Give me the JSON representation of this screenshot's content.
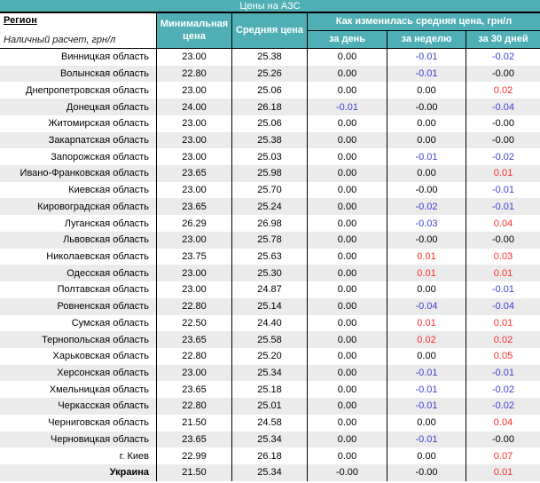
{
  "title": "Цены на АЗС",
  "header": {
    "region_label": "Регион",
    "region_sublabel": "Наличный расчет, грн/л",
    "col_min": "Минимальная цена",
    "col_avg": "Средняя цена",
    "col_change_group": "Как изменилась средняя цена, грн/л",
    "col_day": "за день",
    "col_week": "за неделю",
    "col_month": "за 30 дней"
  },
  "colors": {
    "accent_teal": "#4FAFB4",
    "negative_blue": "#3F3FD1",
    "positive_red": "#FF2D2D",
    "row_alt_gray": "#EBEBEB"
  },
  "rows": [
    {
      "region": "Винницкая область",
      "min": "23.00",
      "avg": "25.38",
      "day": {
        "v": "0.00",
        "c": "zero"
      },
      "week": {
        "v": "-0.01",
        "c": "neg"
      },
      "month": {
        "v": "-0.02",
        "c": "neg"
      },
      "bold": false
    },
    {
      "region": "Волынская область",
      "min": "22.80",
      "avg": "25.26",
      "day": {
        "v": "0.00",
        "c": "zero"
      },
      "week": {
        "v": "-0.01",
        "c": "neg"
      },
      "month": {
        "v": "-0.00",
        "c": "zero"
      },
      "bold": false
    },
    {
      "region": "Днепропетровская область",
      "min": "23.00",
      "avg": "25.06",
      "day": {
        "v": "0.00",
        "c": "zero"
      },
      "week": {
        "v": "0.00",
        "c": "zero"
      },
      "month": {
        "v": "0.02",
        "c": "pos"
      },
      "bold": false
    },
    {
      "region": "Донецкая область",
      "min": "24.00",
      "avg": "26.18",
      "day": {
        "v": "-0.01",
        "c": "neg"
      },
      "week": {
        "v": "-0.00",
        "c": "zero"
      },
      "month": {
        "v": "-0.04",
        "c": "neg"
      },
      "bold": false
    },
    {
      "region": "Житомирская область",
      "min": "23.00",
      "avg": "25.06",
      "day": {
        "v": "0.00",
        "c": "zero"
      },
      "week": {
        "v": "0.00",
        "c": "zero"
      },
      "month": {
        "v": "-0.00",
        "c": "zero"
      },
      "bold": false
    },
    {
      "region": "Закарпатская область",
      "min": "23.00",
      "avg": "25.38",
      "day": {
        "v": "0.00",
        "c": "zero"
      },
      "week": {
        "v": "0.00",
        "c": "zero"
      },
      "month": {
        "v": "-0.00",
        "c": "zero"
      },
      "bold": false
    },
    {
      "region": "Запорожская область",
      "min": "23.00",
      "avg": "25.03",
      "day": {
        "v": "0.00",
        "c": "zero"
      },
      "week": {
        "v": "-0.01",
        "c": "neg"
      },
      "month": {
        "v": "-0.02",
        "c": "neg"
      },
      "bold": false
    },
    {
      "region": "Ивано-Франковская область",
      "min": "23.65",
      "avg": "25.98",
      "day": {
        "v": "0.00",
        "c": "zero"
      },
      "week": {
        "v": "0.00",
        "c": "zero"
      },
      "month": {
        "v": "0.01",
        "c": "pos"
      },
      "bold": false
    },
    {
      "region": "Киевская область",
      "min": "23.00",
      "avg": "25.70",
      "day": {
        "v": "0.00",
        "c": "zero"
      },
      "week": {
        "v": "-0.00",
        "c": "zero"
      },
      "month": {
        "v": "-0.01",
        "c": "neg"
      },
      "bold": false
    },
    {
      "region": "Кировоградская область",
      "min": "23.65",
      "avg": "25.24",
      "day": {
        "v": "0.00",
        "c": "zero"
      },
      "week": {
        "v": "-0.02",
        "c": "neg"
      },
      "month": {
        "v": "-0.01",
        "c": "neg"
      },
      "bold": false
    },
    {
      "region": "Луганская область",
      "min": "26.29",
      "avg": "26.98",
      "day": {
        "v": "0.00",
        "c": "zero"
      },
      "week": {
        "v": "-0.03",
        "c": "neg"
      },
      "month": {
        "v": "0.04",
        "c": "pos"
      },
      "bold": false
    },
    {
      "region": "Львовская область",
      "min": "23.00",
      "avg": "25.78",
      "day": {
        "v": "0.00",
        "c": "zero"
      },
      "week": {
        "v": "-0.00",
        "c": "zero"
      },
      "month": {
        "v": "-0.00",
        "c": "zero"
      },
      "bold": false
    },
    {
      "region": "Николаевская область",
      "min": "23.75",
      "avg": "25.63",
      "day": {
        "v": "0.00",
        "c": "zero"
      },
      "week": {
        "v": "0.01",
        "c": "pos"
      },
      "month": {
        "v": "0.03",
        "c": "pos"
      },
      "bold": false
    },
    {
      "region": "Одесская область",
      "min": "23.00",
      "avg": "25.30",
      "day": {
        "v": "0.00",
        "c": "zero"
      },
      "week": {
        "v": "0.01",
        "c": "pos"
      },
      "month": {
        "v": "0.01",
        "c": "pos"
      },
      "bold": false
    },
    {
      "region": "Полтавская область",
      "min": "23.00",
      "avg": "24.87",
      "day": {
        "v": "0.00",
        "c": "zero"
      },
      "week": {
        "v": "0.00",
        "c": "zero"
      },
      "month": {
        "v": "-0.01",
        "c": "neg"
      },
      "bold": false
    },
    {
      "region": "Ровненская область",
      "min": "22.80",
      "avg": "25.14",
      "day": {
        "v": "0.00",
        "c": "zero"
      },
      "week": {
        "v": "-0.04",
        "c": "neg"
      },
      "month": {
        "v": "-0.04",
        "c": "neg"
      },
      "bold": false
    },
    {
      "region": "Сумская область",
      "min": "22.50",
      "avg": "24.40",
      "day": {
        "v": "0.00",
        "c": "zero"
      },
      "week": {
        "v": "0.01",
        "c": "pos"
      },
      "month": {
        "v": "0.01",
        "c": "pos"
      },
      "bold": false
    },
    {
      "region": "Тернопольская область",
      "min": "23.65",
      "avg": "25.58",
      "day": {
        "v": "0.00",
        "c": "zero"
      },
      "week": {
        "v": "0.02",
        "c": "pos"
      },
      "month": {
        "v": "0.02",
        "c": "pos"
      },
      "bold": false
    },
    {
      "region": "Харьковская область",
      "min": "22.80",
      "avg": "25.20",
      "day": {
        "v": "0.00",
        "c": "zero"
      },
      "week": {
        "v": "0.00",
        "c": "zero"
      },
      "month": {
        "v": "0.05",
        "c": "pos"
      },
      "bold": false
    },
    {
      "region": "Херсонская область",
      "min": "23.00",
      "avg": "25.34",
      "day": {
        "v": "0.00",
        "c": "zero"
      },
      "week": {
        "v": "-0.01",
        "c": "neg"
      },
      "month": {
        "v": "-0.01",
        "c": "neg"
      },
      "bold": false
    },
    {
      "region": "Хмельницкая область",
      "min": "23.65",
      "avg": "25.18",
      "day": {
        "v": "0.00",
        "c": "zero"
      },
      "week": {
        "v": "-0.01",
        "c": "neg"
      },
      "month": {
        "v": "-0.02",
        "c": "neg"
      },
      "bold": false
    },
    {
      "region": "Черкасская область",
      "min": "22.80",
      "avg": "25.01",
      "day": {
        "v": "0.00",
        "c": "zero"
      },
      "week": {
        "v": "-0.01",
        "c": "neg"
      },
      "month": {
        "v": "-0.02",
        "c": "neg"
      },
      "bold": false
    },
    {
      "region": "Черниговская область",
      "min": "21.50",
      "avg": "24.58",
      "day": {
        "v": "0.00",
        "c": "zero"
      },
      "week": {
        "v": "0.00",
        "c": "zero"
      },
      "month": {
        "v": "0.04",
        "c": "pos"
      },
      "bold": false
    },
    {
      "region": "Черновицкая область",
      "min": "23.65",
      "avg": "25.34",
      "day": {
        "v": "0.00",
        "c": "zero"
      },
      "week": {
        "v": "-0.01",
        "c": "neg"
      },
      "month": {
        "v": "-0.00",
        "c": "zero"
      },
      "bold": false
    },
    {
      "region": "г. Киев",
      "min": "22.99",
      "avg": "26.18",
      "day": {
        "v": "0.00",
        "c": "zero"
      },
      "week": {
        "v": "0.00",
        "c": "zero"
      },
      "month": {
        "v": "0.07",
        "c": "pos"
      },
      "bold": false
    },
    {
      "region": "Украина",
      "min": "21.50",
      "avg": "25.34",
      "day": {
        "v": "-0.00",
        "c": "zero"
      },
      "week": {
        "v": "-0.00",
        "c": "zero"
      },
      "month": {
        "v": "0.01",
        "c": "pos"
      },
      "bold": true
    }
  ]
}
